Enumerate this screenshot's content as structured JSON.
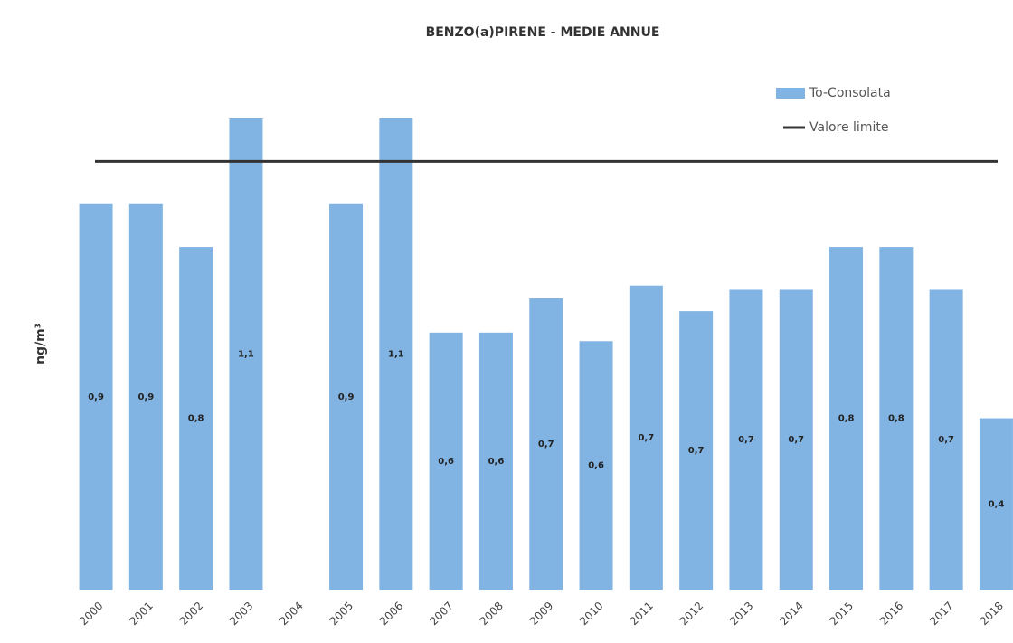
{
  "chart_data": {
    "type": "bar",
    "title": "BENZO(a)PIRENE - MEDIE ANNUE",
    "y_label": "ng/m³",
    "categories": [
      "2000",
      "2001",
      "2002",
      "2003",
      "2004",
      "2005",
      "2006",
      "2007",
      "2008",
      "2009",
      "2010",
      "2011",
      "2012",
      "2013",
      "2014",
      "2015",
      "2016",
      "2017",
      "2018"
    ],
    "series": [
      {
        "name": "To-Consolata",
        "color": "#82b4e3",
        "values": [
          0.9,
          0.9,
          0.8,
          1.1,
          null,
          0.9,
          1.1,
          0.6,
          0.6,
          0.68,
          0.58,
          0.71,
          0.65,
          0.7,
          0.7,
          0.8,
          0.8,
          0.7,
          0.4
        ],
        "value_labels": [
          "0,9",
          "0,9",
          "0,8",
          "1,1",
          null,
          "0,9",
          "1,1",
          "0,6",
          "0,6",
          "0,7",
          "0,6",
          "0,7",
          "0,7",
          "0,7",
          "0,7",
          "0,8",
          "0,8",
          "0,7",
          "0,4"
        ]
      }
    ],
    "limit": {
      "name": "Valore limite",
      "value": 1,
      "color": "#333333"
    },
    "ylim": [
      0,
      1.1
    ]
  }
}
